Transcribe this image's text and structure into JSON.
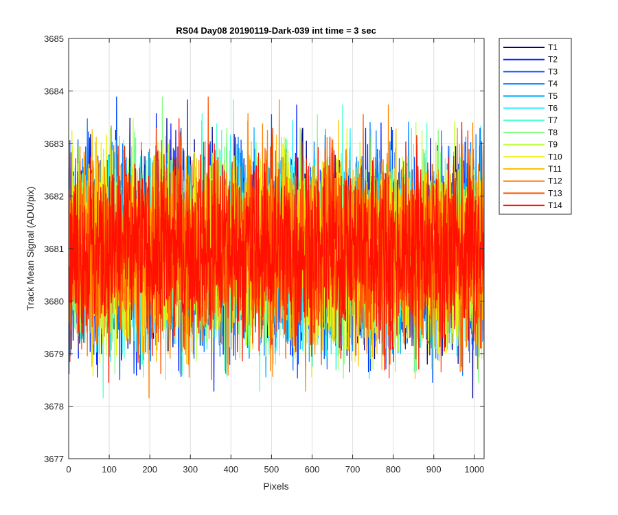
{
  "chart_data": {
    "type": "line",
    "title": "RS04 Day08 20190119-Dark-039 int time = 3 sec",
    "xlabel": "Pixels",
    "ylabel": "Track Mean Signal (ADU/pix)",
    "xlim": [
      0,
      1024
    ],
    "ylim": [
      3677,
      3685
    ],
    "xticks": [
      0,
      100,
      200,
      300,
      400,
      500,
      600,
      700,
      800,
      900,
      1000
    ],
    "yticks": [
      3677,
      3678,
      3679,
      3680,
      3681,
      3682,
      3683,
      3684,
      3685
    ],
    "grid": true,
    "legend_position": "outside-top-right",
    "x_range_data": [
      1,
      1024
    ],
    "mean_level": 3681,
    "series": [
      {
        "name": "T1",
        "color": "#00008f"
      },
      {
        "name": "T2",
        "color": "#0020ff"
      },
      {
        "name": "T3",
        "color": "#0050ff"
      },
      {
        "name": "T4",
        "color": "#0080ff"
      },
      {
        "name": "T5",
        "color": "#00b0ff"
      },
      {
        "name": "T6",
        "color": "#20f0ff"
      },
      {
        "name": "T7",
        "color": "#50ffd0"
      },
      {
        "name": "T8",
        "color": "#80ff80"
      },
      {
        "name": "T9",
        "color": "#c0ff40"
      },
      {
        "name": "T10",
        "color": "#f0f000"
      },
      {
        "name": "T11",
        "color": "#ffc000"
      },
      {
        "name": "T12",
        "color": "#ff8000"
      },
      {
        "name": "T13",
        "color": "#ff5000"
      },
      {
        "name": "T14",
        "color": "#ff1000"
      }
    ]
  }
}
